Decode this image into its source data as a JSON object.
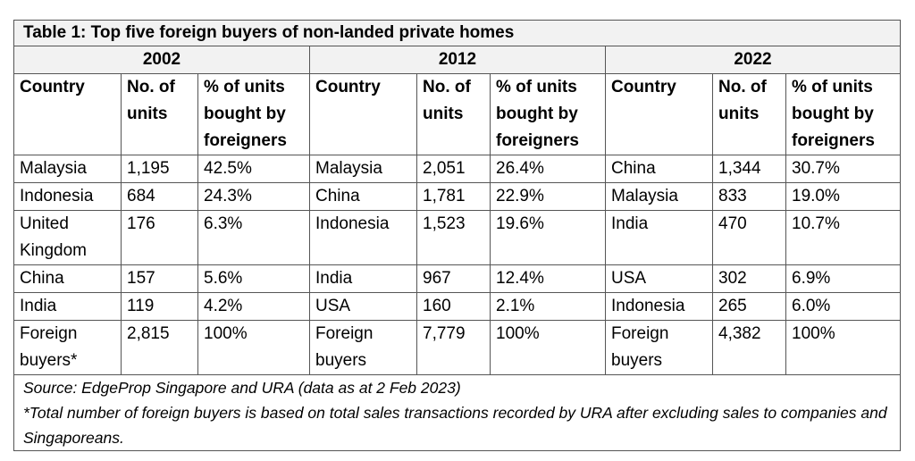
{
  "title": "Table 1: Top five foreign buyers of non-landed private homes",
  "years": [
    "2002",
    "2012",
    "2022"
  ],
  "headers": {
    "country": "Country",
    "no_of_units": "No. of units",
    "pct": "% of units bought by foreigners"
  },
  "rows": [
    [
      [
        "Malaysia",
        "1,195",
        "42.5%"
      ],
      [
        "Malaysia",
        "2,051",
        "26.4%"
      ],
      [
        "China",
        "1,344",
        "30.7%"
      ]
    ],
    [
      [
        "Indonesia",
        "684",
        "24.3%"
      ],
      [
        "China",
        "1,781",
        "22.9%"
      ],
      [
        "Malaysia",
        "833",
        "19.0%"
      ]
    ],
    [
      [
        "United Kingdom",
        "176",
        "6.3%"
      ],
      [
        "Indonesia",
        "1,523",
        "19.6%"
      ],
      [
        "India",
        "470",
        "10.7%"
      ]
    ],
    [
      [
        "China",
        "157",
        "5.6%"
      ],
      [
        "India",
        "967",
        "12.4%"
      ],
      [
        "USA",
        "302",
        "6.9%"
      ]
    ],
    [
      [
        "India",
        "119",
        "4.2%"
      ],
      [
        "USA",
        "160",
        "2.1%"
      ],
      [
        "Indonesia",
        "265",
        "6.0%"
      ]
    ],
    [
      [
        "Foreign buyers*",
        "2,815",
        "100%"
      ],
      [
        "Foreign buyers",
        "7,779",
        "100%"
      ],
      [
        "Foreign buyers",
        "4,382",
        "100%"
      ]
    ]
  ],
  "source": "Source: EdgeProp Singapore and URA (data as at 2 Feb 2023)",
  "footnote": "*Total number of foreign buyers is based on total sales transactions recorded by URA after excluding sales to companies and Singaporeans."
}
